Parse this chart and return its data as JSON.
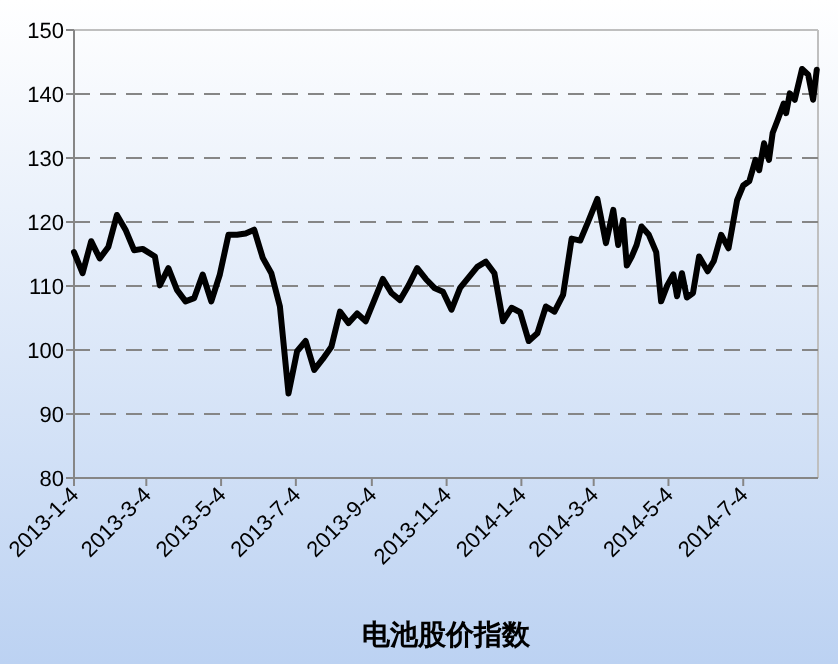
{
  "chart_data": {
    "type": "line",
    "title": "电池股价指数",
    "x": [
      "2013-01-04",
      "2013-01-11",
      "2013-01-18",
      "2013-01-25",
      "2013-02-01",
      "2013-02-08",
      "2013-02-15",
      "2013-02-22",
      "2013-03-01",
      "2013-03-11",
      "2013-03-15",
      "2013-03-22",
      "2013-03-29",
      "2013-04-05",
      "2013-04-12",
      "2013-04-19",
      "2013-04-26",
      "2013-05-03",
      "2013-05-10",
      "2013-05-17",
      "2013-05-24",
      "2013-05-31",
      "2013-06-07",
      "2013-06-14",
      "2013-06-21",
      "2013-06-28",
      "2013-07-05",
      "2013-07-12",
      "2013-07-19",
      "2013-07-26",
      "2013-08-02",
      "2013-08-09",
      "2013-08-16",
      "2013-08-23",
      "2013-08-30",
      "2013-09-06",
      "2013-09-13",
      "2013-09-20",
      "2013-09-27",
      "2013-10-04",
      "2013-10-11",
      "2013-10-18",
      "2013-10-25",
      "2013-11-01",
      "2013-11-08",
      "2013-11-15",
      "2013-11-29",
      "2013-12-06",
      "2013-12-13",
      "2013-12-20",
      "2013-12-27",
      "2014-01-03",
      "2014-01-10",
      "2014-01-17",
      "2014-01-24",
      "2014-01-31",
      "2014-02-07",
      "2014-02-14",
      "2014-02-21",
      "2014-02-28",
      "2014-03-07",
      "2014-03-14",
      "2014-03-20",
      "2014-03-24",
      "2014-03-28",
      "2014-03-31",
      "2014-04-04",
      "2014-04-08",
      "2014-04-12",
      "2014-04-18",
      "2014-04-24",
      "2014-04-28",
      "2014-05-03",
      "2014-05-08",
      "2014-05-11",
      "2014-05-15",
      "2014-05-19",
      "2014-05-24",
      "2014-05-29",
      "2014-06-05",
      "2014-06-10",
      "2014-06-16",
      "2014-06-22",
      "2014-06-29",
      "2014-07-04",
      "2014-07-09",
      "2014-07-14",
      "2014-07-17",
      "2014-07-21",
      "2014-07-25",
      "2014-07-28",
      "2014-08-01",
      "2014-08-06",
      "2014-08-08",
      "2014-08-11",
      "2014-08-15",
      "2014-08-21",
      "2014-08-26",
      "2014-08-30",
      "2014-09-02"
    ],
    "values": [
      115.3,
      112.0,
      117.0,
      114.3,
      116.1,
      121.1,
      118.8,
      115.6,
      115.8,
      114.6,
      110.1,
      112.8,
      109.4,
      107.6,
      108.1,
      111.8,
      107.6,
      111.8,
      118.0,
      118.0,
      118.2,
      118.8,
      114.4,
      112.0,
      106.8,
      93.2,
      99.8,
      101.4,
      96.9,
      98.6,
      100.5,
      106.0,
      104.2,
      105.7,
      104.5,
      107.8,
      111.1,
      108.9,
      107.8,
      110.1,
      112.8,
      111.1,
      109.7,
      109.1,
      106.3,
      109.7,
      113.0,
      113.8,
      112.0,
      104.5,
      106.6,
      105.9,
      101.4,
      102.6,
      106.8,
      106.0,
      108.6,
      117.4,
      117.1,
      120.3,
      123.6,
      116.7,
      121.9,
      116.4,
      120.3,
      113.2,
      114.6,
      116.4,
      119.3,
      118.0,
      115.3,
      107.6,
      110.1,
      111.8,
      108.4,
      112.0,
      108.2,
      108.9,
      114.6,
      112.3,
      113.9,
      118.0,
      115.9,
      123.4,
      125.7,
      126.4,
      129.7,
      128.1,
      132.3,
      129.7,
      133.9,
      135.9,
      138.5,
      137.0,
      140.1,
      139.1,
      143.9,
      143.0,
      139.1,
      143.8
    ],
    "color": "#000000",
    "xlim": [
      "2013-01-04",
      "2014-09-03"
    ],
    "xticks": [
      {
        "value": "2013-01-04",
        "label": "2013-1-4"
      },
      {
        "value": "2013-03-04",
        "label": "2013-3-4"
      },
      {
        "value": "2013-05-04",
        "label": "2013-5-4"
      },
      {
        "value": "2013-07-04",
        "label": "2013-7-4"
      },
      {
        "value": "2013-09-04",
        "label": "2013-9-4"
      },
      {
        "value": "2013-11-04",
        "label": "2013-11-4"
      },
      {
        "value": "2014-01-04",
        "label": "2014-1-4"
      },
      {
        "value": "2014-03-04",
        "label": "2014-3-4"
      },
      {
        "value": "2014-05-04",
        "label": "2014-5-4"
      },
      {
        "value": "2014-07-04",
        "label": "2014-7-4"
      }
    ],
    "ylim": [
      80,
      150
    ],
    "yticks": [
      80,
      90,
      100,
      110,
      120,
      130,
      140,
      150
    ],
    "grid": "y"
  }
}
